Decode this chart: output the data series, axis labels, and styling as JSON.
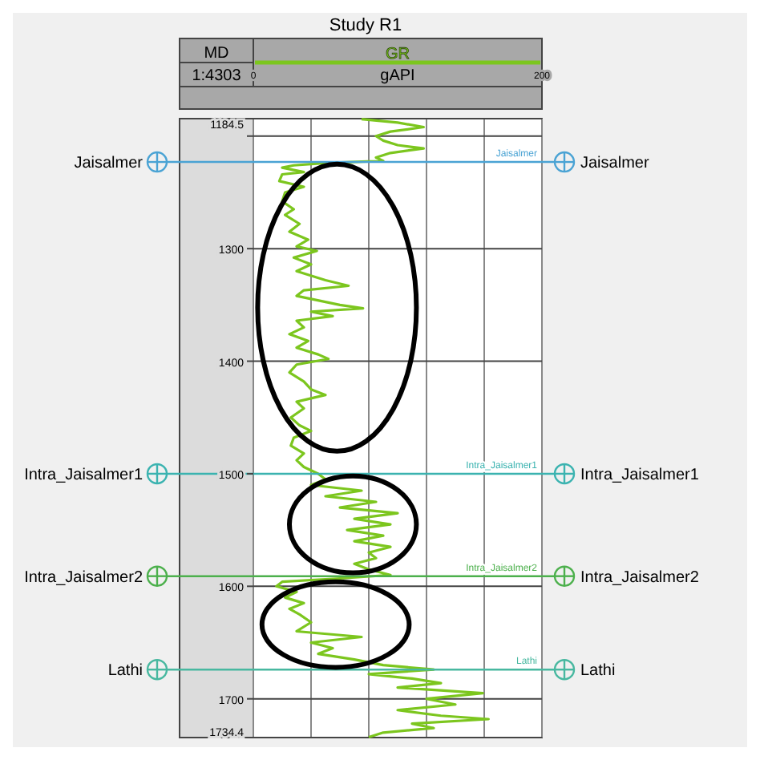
{
  "chart_data": {
    "type": "line",
    "title": "Study R1",
    "ylabel": "MD",
    "xlabel": "gAPI",
    "annotations": [
      "1:4303"
    ],
    "orientation": "horizontal",
    "legend": "top",
    "grid": true,
    "xlim": [
      0,
      200
    ],
    "xticks": [
      0,
      {
        "value": 40,
        "label": null
      },
      {
        "value": 80,
        "label": null
      },
      {
        "value": 120,
        "label": null
      },
      {
        "value": 160,
        "label": null
      },
      200
    ],
    "ylim": [
      1734.4,
      1184.5
    ],
    "yticks": [
      1184.5,
      {
        "value": 1200,
        "label": null
      },
      1300,
      1400,
      1500,
      1600,
      1700,
      1734.4
    ],
    "ref_lines": [
      {
        "axis": "y",
        "value": 1223,
        "label": "Jaisalmer",
        "color": "#4aa3d4"
      },
      {
        "axis": "y",
        "value": 1500,
        "label": "Intra_Jaisalmer1",
        "color": "#3bb3b0"
      },
      {
        "axis": "y",
        "value": 1591,
        "label": "Intra_Jaisalmer2",
        "color": "#4cb04c"
      },
      {
        "axis": "y",
        "value": 1674,
        "label": "Lathi",
        "color": "#48b8a0"
      }
    ],
    "series": [
      {
        "name": "GR",
        "color": "#7cc61e",
        "x": [
          1185,
          1188,
          1192,
          1196,
          1200,
          1204,
          1208,
          1211,
          1215,
          1219,
          1222,
          1224,
          1226,
          1228,
          1232,
          1234,
          1240,
          1245,
          1250,
          1258,
          1265,
          1270,
          1278,
          1285,
          1292,
          1298,
          1302,
          1308,
          1314,
          1320,
          1328,
          1333,
          1337,
          1342,
          1350,
          1353,
          1356,
          1360,
          1364,
          1370,
          1376,
          1382,
          1388,
          1394,
          1398,
          1403,
          1410,
          1418,
          1425,
          1430,
          1436,
          1442,
          1450,
          1457,
          1462,
          1468,
          1475,
          1482,
          1488,
          1494,
          1500,
          1505,
          1510,
          1515,
          1520,
          1525,
          1530,
          1535,
          1540,
          1545,
          1550,
          1555,
          1560,
          1565,
          1570,
          1575,
          1580,
          1585,
          1590,
          1593,
          1596,
          1600,
          1605,
          1610,
          1615,
          1620,
          1625,
          1632,
          1640,
          1645,
          1650,
          1655,
          1660,
          1665,
          1670,
          1674,
          1678,
          1682,
          1686,
          1690,
          1695,
          1700,
          1705,
          1710,
          1715,
          1718,
          1722,
          1726,
          1730,
          1734
        ],
        "values": [
          75,
          100,
          118,
          95,
          85,
          90,
          100,
          118,
          95,
          85,
          90,
          50,
          28,
          20,
          35,
          20,
          18,
          35,
          22,
          20,
          28,
          22,
          32,
          25,
          38,
          30,
          44,
          28,
          40,
          30,
          50,
          66,
          35,
          30,
          60,
          76,
          40,
          55,
          30,
          35,
          25,
          38,
          30,
          45,
          52,
          30,
          25,
          35,
          40,
          50,
          30,
          35,
          26,
          32,
          40,
          28,
          26,
          35,
          30,
          35,
          45,
          50,
          40,
          75,
          50,
          85,
          60,
          100,
          70,
          95,
          65,
          90,
          70,
          95,
          80,
          85,
          70,
          80,
          95,
          60,
          20,
          16,
          30,
          22,
          35,
          25,
          32,
          40,
          30,
          75,
          40,
          55,
          45,
          70,
          90,
          125,
          80,
          110,
          130,
          100,
          159,
          120,
          140,
          100,
          130,
          163,
          110,
          125,
          90,
          80
        ]
      }
    ]
  }
}
